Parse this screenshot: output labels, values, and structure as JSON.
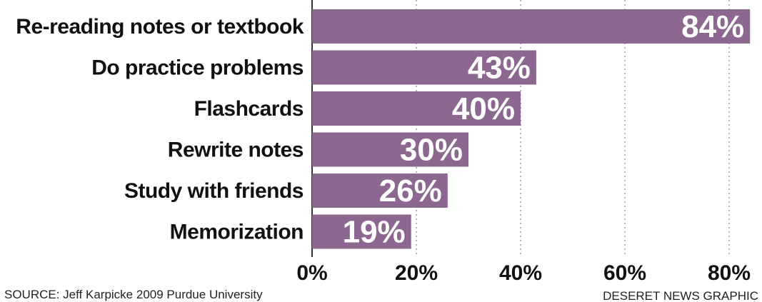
{
  "chart_data": {
    "type": "bar",
    "orientation": "horizontal",
    "categories": [
      "Re-reading notes or textbook",
      "Do practice problems",
      "Flashcards",
      "Rewrite notes",
      "Study with friends",
      "Memorization"
    ],
    "values": [
      84,
      43,
      40,
      30,
      26,
      19
    ],
    "value_labels": [
      "84%",
      "43%",
      "40%",
      "30%",
      "26%",
      "19%"
    ],
    "xlim": [
      0,
      80
    ],
    "ticks": [
      0,
      20,
      40,
      60,
      80
    ],
    "tick_labels": [
      "0%",
      "20%",
      "40%",
      "60%",
      "80%"
    ],
    "grid": "vertical dotted",
    "bar_color": "#8c6890"
  },
  "footer": {
    "source": "SOURCE: Jeff Karpicke 2009 Purdue University",
    "credit": "DESERET NEWS GRAPHIC"
  }
}
